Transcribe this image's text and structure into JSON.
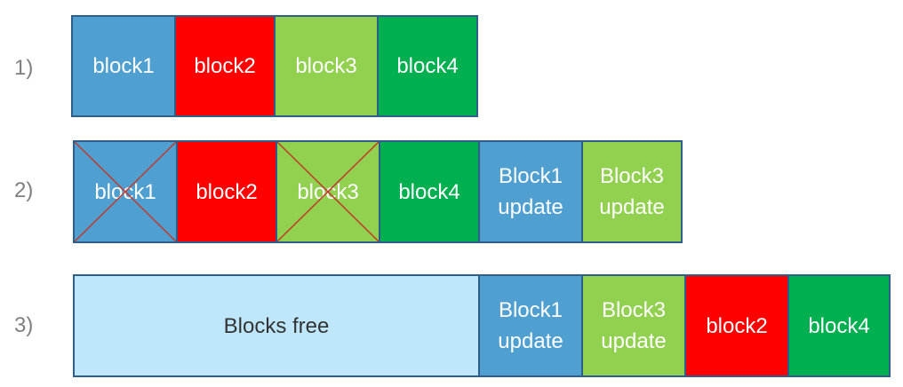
{
  "colors": {
    "blue": "#4f9fd1",
    "red": "#ff0000",
    "lightgreen": "#92d050",
    "green": "#00b050",
    "lightblue": "#bfe7fb",
    "border": "#2e5f8a",
    "cross": "#c0392b"
  },
  "rows": [
    {
      "label": "1)",
      "blocks": [
        {
          "text": "block1",
          "color": "#4f9fd1",
          "crossed": false
        },
        {
          "text": "block2",
          "color": "#ff0000",
          "crossed": false
        },
        {
          "text": "block3",
          "color": "#92d050",
          "crossed": false
        },
        {
          "text": "block4",
          "color": "#00b050",
          "crossed": false
        }
      ]
    },
    {
      "label": "2)",
      "blocks": [
        {
          "text": "block1",
          "color": "#4f9fd1",
          "crossed": true
        },
        {
          "text": "block2",
          "color": "#ff0000",
          "crossed": false
        },
        {
          "text": "block3",
          "color": "#92d050",
          "crossed": true
        },
        {
          "text": "block4",
          "color": "#00b050",
          "crossed": false
        },
        {
          "text": "Block1\nupdate",
          "color": "#4f9fd1",
          "crossed": false
        },
        {
          "text": "Block3\nupdate",
          "color": "#92d050",
          "crossed": false
        }
      ]
    },
    {
      "label": "3)",
      "blocks": [
        {
          "text": "Blocks free",
          "color": "#bfe7fb",
          "crossed": false
        },
        {
          "text": "Block1\nupdate",
          "color": "#4f9fd1",
          "crossed": false
        },
        {
          "text": "Block3\nupdate",
          "color": "#92d050",
          "crossed": false
        },
        {
          "text": "block2",
          "color": "#ff0000",
          "crossed": false
        },
        {
          "text": "block4",
          "color": "#00b050",
          "crossed": false
        }
      ]
    }
  ]
}
